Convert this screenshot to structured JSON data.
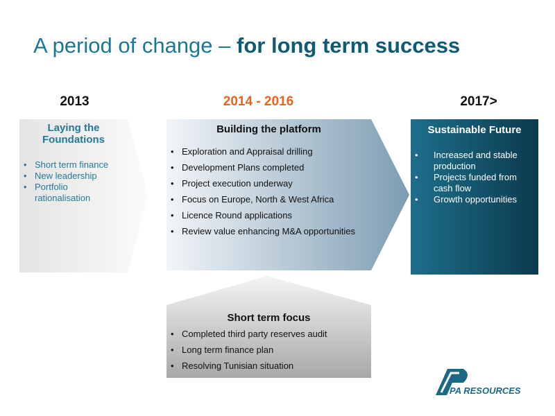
{
  "title": {
    "prefix": "A period of change –",
    "emphasis": "for long term success"
  },
  "years": [
    "2013",
    "2014 - 2016",
    "2017>"
  ],
  "panels": [
    {
      "title": "Laying the Foundations",
      "items": [
        "Short term finance",
        "New leadership",
        "Portfolio rationalisation"
      ]
    },
    {
      "title": "Building the platform",
      "items": [
        "Exploration and Appraisal drilling",
        "Development Plans completed",
        "Project execution underway",
        "Focus on Europe, North & West Africa",
        "Licence Round applications",
        "Review value enhancing M&A opportunities"
      ]
    },
    {
      "title": "Sustainable Future",
      "items": [
        "Increased and stable production",
        "Projects funded from cash flow",
        "Growth opportunities"
      ]
    }
  ],
  "short_term_focus": {
    "title": "Short term focus",
    "items": [
      "Completed third party reserves audit",
      "Long term finance plan",
      "Resolving Tunisian situation"
    ]
  },
  "logo": {
    "text": "PA RESOURCES"
  }
}
